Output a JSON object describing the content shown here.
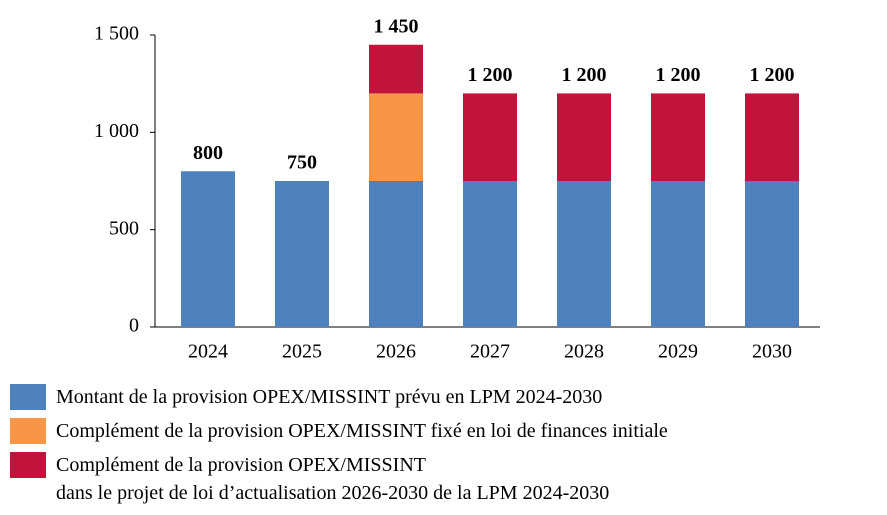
{
  "chart_data": {
    "type": "stacked_bar",
    "categories": [
      "2024",
      "2025",
      "2026",
      "2027",
      "2028",
      "2029",
      "2030"
    ],
    "series": [
      {
        "name": "Montant de la provision OPEX/MISSINT prévu en LPM 2024-2030",
        "color": "#4f81bd",
        "values": [
          800,
          750,
          750,
          750,
          750,
          750,
          750
        ]
      },
      {
        "name": "Complément de la provision OPEX/MISSINT fixé en loi de finances initiale",
        "color": "#f79646",
        "values": [
          null,
          null,
          450,
          null,
          null,
          null,
          null
        ]
      },
      {
        "name": "Complément de la provision OPEX/MISSINT\ndans le projet de loi d’actualisation 2026-2030 de la LPM 2024-2030",
        "color": "#c0143c",
        "values": [
          null,
          null,
          250,
          450,
          450,
          450,
          450
        ]
      }
    ],
    "totals": {
      "values": [
        800,
        750,
        1450,
        1200,
        1200,
        1200,
        1200
      ],
      "value_labels": [
        "800",
        "750",
        "1 450",
        "1 200",
        "1 200",
        "1 200",
        "1 200"
      ]
    },
    "ylim": [
      0,
      1500
    ],
    "yticks": [
      0,
      500,
      {
        "value": 1000,
        "label": "1 000"
      },
      {
        "value": 1500,
        "label": "1 500"
      }
    ]
  }
}
